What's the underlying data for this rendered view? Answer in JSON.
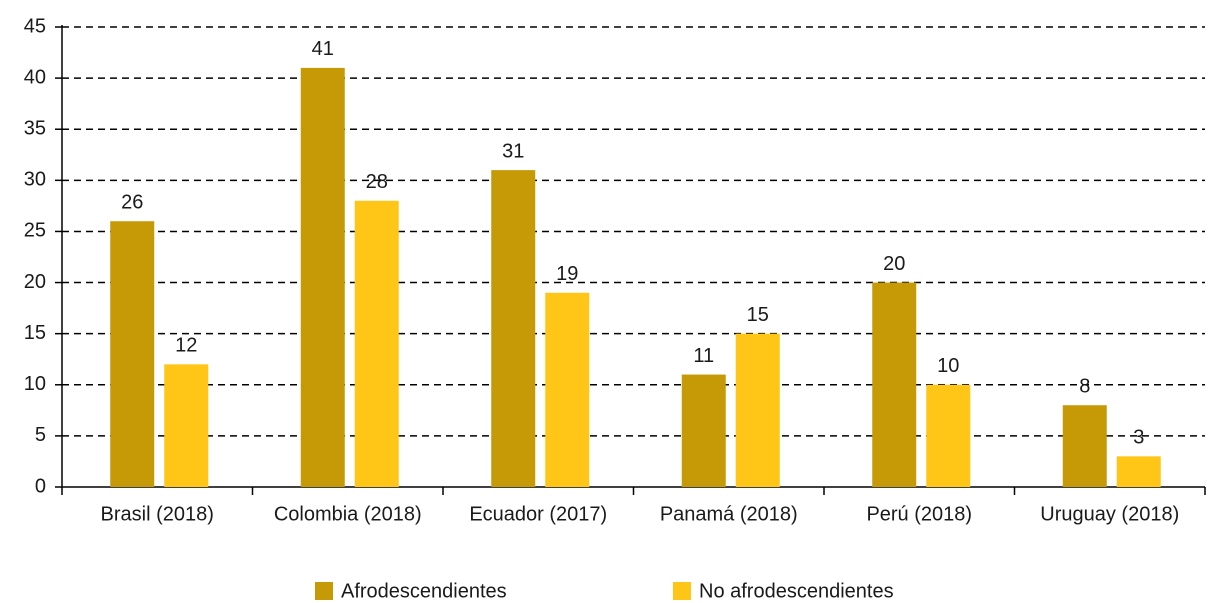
{
  "chart_data": {
    "type": "bar",
    "categories": [
      "Brasil (2018)",
      "Colombia (2018)",
      "Ecuador (2017)",
      "Panamá (2018)",
      "Perú (2018)",
      "Uruguay (2018)"
    ],
    "series": [
      {
        "name": "Afrodescendientes",
        "color": "#c59a06",
        "values": [
          26,
          41,
          31,
          11,
          20,
          8
        ]
      },
      {
        "name": "No afrodescendientes",
        "color": "#ffc617",
        "values": [
          12,
          28,
          19,
          15,
          10,
          3
        ]
      }
    ],
    "ylim": [
      0,
      45
    ],
    "yticks": [
      0,
      5,
      10,
      15,
      20,
      25,
      30,
      35,
      40,
      45
    ],
    "grid": true,
    "legend": "bottom"
  }
}
